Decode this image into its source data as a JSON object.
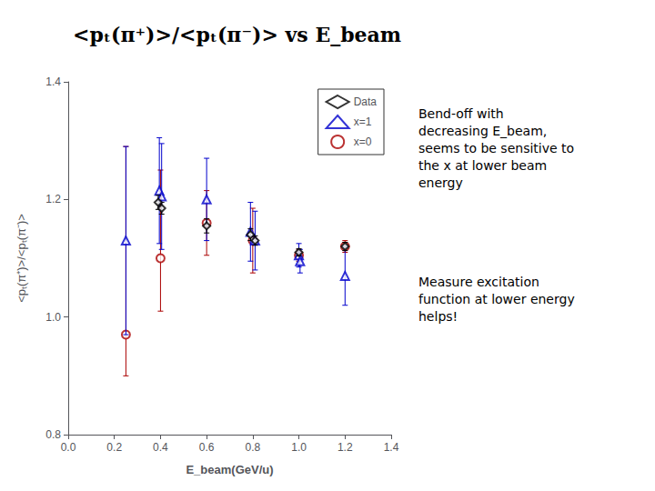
{
  "chart_data": {
    "type": "scatter",
    "title": "<pₜ(π⁺)>/<pₜ(π⁻)> vs E_beam",
    "xlabel": "E_beam(GeV/u)",
    "ylabel": "<pₜ(π⁺)>/<pₜ(π⁻)>",
    "xlim": [
      0,
      1.4
    ],
    "ylim": [
      0.8,
      1.4
    ],
    "xticks": [
      {
        "value": 0,
        "label": "0.0"
      },
      0.2,
      0.4,
      0.6,
      0.8,
      {
        "value": 1.0,
        "label": "1.0"
      },
      1.2,
      1.4
    ],
    "yticks": [
      0.8,
      {
        "value": 1.0,
        "label": "1.0"
      },
      1.2,
      1.4
    ],
    "grid": false,
    "legend": "upper right",
    "series": [
      {
        "name": "Data",
        "color": "#000000",
        "marker": "diamond",
        "x": [
          0.39,
          0.405,
          0.6,
          0.79,
          0.81,
          1.0,
          1.2
        ],
        "values": [
          1.195,
          1.185,
          1.155,
          1.14,
          1.13,
          1.11,
          1.12
        ],
        "yerr_lo": [
          0.012,
          0.01,
          0.012,
          0.01,
          0.008,
          0.006,
          0.007
        ],
        "yerr_hi": [
          0.012,
          0.01,
          0.012,
          0.01,
          0.008,
          0.006,
          0.007
        ]
      },
      {
        "name": "x=1",
        "color": "#0000cc",
        "marker": "triangle",
        "x": [
          0.25,
          0.395,
          0.405,
          0.6,
          0.79,
          0.81,
          1.0,
          1.005,
          1.2
        ],
        "values": [
          1.13,
          1.215,
          1.205,
          1.2,
          1.145,
          1.13,
          1.105,
          1.095,
          1.07
        ],
        "yerr_lo": [
          0.16,
          0.09,
          0.09,
          0.07,
          0.05,
          0.05,
          0.02,
          0.02,
          0.05
        ],
        "yerr_hi": [
          0.16,
          0.09,
          0.09,
          0.07,
          0.05,
          0.05,
          0.02,
          0.02,
          0.05
        ]
      },
      {
        "name": "x=0",
        "color": "#aa0000",
        "marker": "circle",
        "x": [
          0.25,
          0.4,
          0.6,
          0.8,
          1.0,
          1.2
        ],
        "values": [
          0.97,
          1.1,
          1.16,
          1.13,
          1.105,
          1.12
        ],
        "yerr_lo": [
          0.07,
          0.09,
          0.055,
          0.055,
          0.01,
          0.01
        ],
        "yerr_hi": [
          0.32,
          0.15,
          0.055,
          0.055,
          0.01,
          0.01
        ]
      }
    ],
    "annotations": [
      "Bend-off with\ndecreasing E_beam,\nseems to be sensitive to\nthe x at lower beam\nenergy",
      "Measure excitation\nfunction at lower energy\nhelps!"
    ]
  }
}
